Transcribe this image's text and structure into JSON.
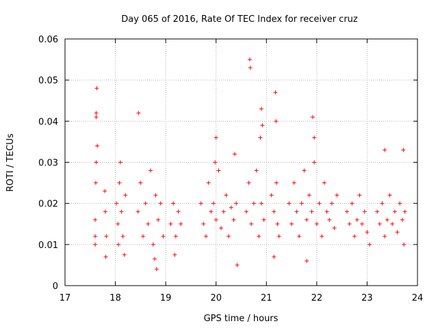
{
  "chart_data": {
    "type": "scatter",
    "title": "Day 065 of 2016, Rate Of TEC Index for receiver cruz",
    "xlabel": "GPS time / hours",
    "ylabel": "ROTI / TECUs",
    "xlim": [
      17,
      24
    ],
    "ylim": [
      0,
      0.06
    ],
    "xticks": [
      17,
      18,
      19,
      20,
      21,
      22,
      23,
      24
    ],
    "yticks": [
      0,
      0.01,
      0.02,
      0.03,
      0.04,
      0.05,
      0.06
    ],
    "xtick_labels": [
      "17",
      "18",
      "19",
      "20",
      "21",
      "22",
      "23",
      "24"
    ],
    "ytick_labels": [
      "0",
      "0.01",
      "0.02",
      "0.03",
      "0.04",
      "0.05",
      "0.06"
    ],
    "grid": true,
    "marker": "+",
    "color": "#ff0000",
    "series": [
      {
        "name": "ROTI",
        "x": [
          17.6,
          17.6,
          17.61,
          17.62,
          17.62,
          17.63,
          17.64,
          17.6,
          17.62,
          17.8,
          17.82,
          17.81,
          17.79,
          18.02,
          18.05,
          18.08,
          18.12,
          18.15,
          18.1,
          18.06,
          18.2,
          18.18,
          18.45,
          18.5,
          18.55,
          18.6,
          18.65,
          18.7,
          18.75,
          18.8,
          18.85,
          18.9,
          18.95,
          18.82,
          18.78,
          18.46,
          19.1,
          19.15,
          19.2,
          19.25,
          19.3,
          19.18,
          19.7,
          19.75,
          19.8,
          19.85,
          19.9,
          19.95,
          20.0,
          20.05,
          20.1,
          20.15,
          20.2,
          20.25,
          20.3,
          20.35,
          20.4,
          20.42,
          20.37,
          20.0,
          19.98,
          20.6,
          20.65,
          20.7,
          20.75,
          20.8,
          20.85,
          20.9,
          20.95,
          20.67,
          20.68,
          20.9,
          20.92,
          20.88,
          21.1,
          21.15,
          21.2,
          21.25,
          21.18,
          21.19,
          21.22,
          21.15,
          21.45,
          21.5,
          21.55,
          21.6,
          21.65,
          21.7,
          21.75,
          21.8,
          21.85,
          21.9,
          21.95,
          22.0,
          22.05,
          22.1,
          22.15,
          22.2,
          22.25,
          22.3,
          22.35,
          22.4,
          21.92,
          21.95,
          21.8,
          22.6,
          22.65,
          22.7,
          22.75,
          22.8,
          22.85,
          22.9,
          22.95,
          23.0,
          23.05,
          23.2,
          23.25,
          23.3,
          23.35,
          23.4,
          23.45,
          23.5,
          23.55,
          23.6,
          23.65,
          23.7,
          23.75,
          23.72,
          23.73,
          23.35
        ],
        "y": [
          0.016,
          0.012,
          0.025,
          0.03,
          0.042,
          0.048,
          0.034,
          0.01,
          0.041,
          0.018,
          0.012,
          0.007,
          0.023,
          0.02,
          0.015,
          0.025,
          0.018,
          0.012,
          0.03,
          0.01,
          0.022,
          0.0075,
          0.018,
          0.025,
          0.012,
          0.02,
          0.015,
          0.028,
          0.01,
          0.022,
          0.016,
          0.02,
          0.012,
          0.004,
          0.0065,
          0.042,
          0.015,
          0.02,
          0.012,
          0.018,
          0.015,
          0.0075,
          0.02,
          0.015,
          0.012,
          0.025,
          0.018,
          0.02,
          0.016,
          0.028,
          0.014,
          0.018,
          0.022,
          0.012,
          0.019,
          0.016,
          0.02,
          0.005,
          0.032,
          0.036,
          0.03,
          0.018,
          0.025,
          0.015,
          0.02,
          0.028,
          0.012,
          0.02,
          0.016,
          0.055,
          0.053,
          0.043,
          0.039,
          0.036,
          0.022,
          0.018,
          0.025,
          0.012,
          0.047,
          0.04,
          0.015,
          0.007,
          0.02,
          0.015,
          0.025,
          0.018,
          0.012,
          0.02,
          0.028,
          0.016,
          0.022,
          0.018,
          0.03,
          0.015,
          0.02,
          0.012,
          0.025,
          0.018,
          0.016,
          0.02,
          0.014,
          0.022,
          0.041,
          0.036,
          0.006,
          0.018,
          0.015,
          0.02,
          0.012,
          0.016,
          0.022,
          0.015,
          0.018,
          0.013,
          0.01,
          0.018,
          0.015,
          0.02,
          0.012,
          0.016,
          0.022,
          0.015,
          0.018,
          0.013,
          0.02,
          0.016,
          0.018,
          0.033,
          0.01,
          0.033
        ]
      }
    ]
  }
}
